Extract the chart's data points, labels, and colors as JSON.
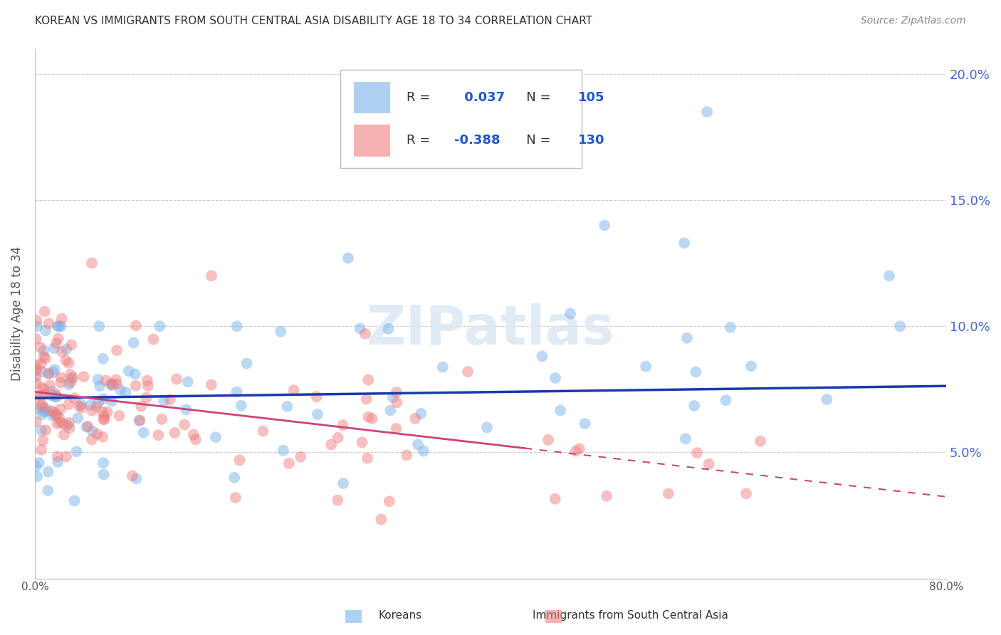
{
  "title": "KOREAN VS IMMIGRANTS FROM SOUTH CENTRAL ASIA DISABILITY AGE 18 TO 34 CORRELATION CHART",
  "source": "Source: ZipAtlas.com",
  "ylabel": "Disability Age 18 to 34",
  "xlim": [
    0.0,
    0.8
  ],
  "ylim": [
    0.0,
    0.21
  ],
  "korean_R": 0.037,
  "korean_N": 105,
  "immigrant_R": -0.388,
  "immigrant_N": 130,
  "korean_color": "#7ab3e8",
  "immigrant_color": "#f08080",
  "korean_line_color": "#1a3aaa",
  "immigrant_line_color": "#cc4477",
  "watermark": "ZIPatlas",
  "legend_entries": [
    "Koreans",
    "Immigrants from South Central Asia"
  ],
  "background_color": "#ffffff",
  "right_tick_color": "#4466cc",
  "legend_text_color": "#2255cc",
  "legend_label_color": "#333333"
}
